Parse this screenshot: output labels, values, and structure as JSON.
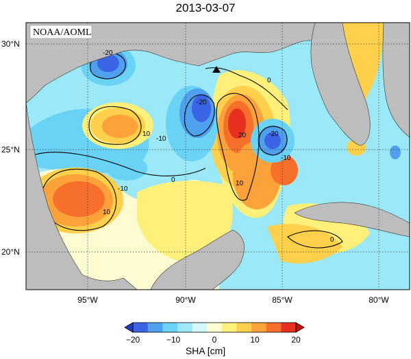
{
  "title": "2013-03-07",
  "credit": "NOAA/AOML",
  "colorbar_label": "SHA [cm]",
  "colorbar_ticks": [
    "−20",
    "−10",
    "0",
    "10",
    "20"
  ],
  "lat_labels": [
    "30°N",
    "25°N",
    "20°N"
  ],
  "lon_labels": [
    "95°W",
    "90°W",
    "85°W",
    "80°W"
  ],
  "contour_labels": [
    "-20",
    "-20",
    "-20",
    "-10",
    "-10",
    "-10",
    "0",
    "0",
    "0",
    "10",
    "10",
    "10",
    "20"
  ],
  "colors": {
    "land": "#bdbdbd",
    "colormap": [
      "#1e3cc8",
      "#3c64e6",
      "#4fa0ee",
      "#6ad2f4",
      "#9be8f8",
      "#d2f8fc",
      "#fcfcd0",
      "#fef07a",
      "#fed04c",
      "#fda23a",
      "#f6702c",
      "#e83020",
      "#c81010"
    ]
  }
}
